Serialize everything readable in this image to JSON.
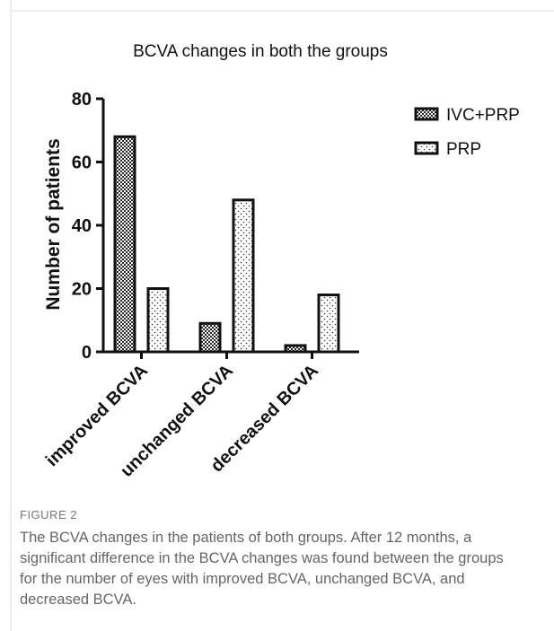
{
  "chart_data": {
    "type": "bar",
    "title": "BCVA changes in both the groups",
    "ylabel": "Number of  patients",
    "categories": [
      "improved BCVA",
      "unchanged BCVA",
      "decreased BCVA"
    ],
    "series": [
      {
        "name": "IVC+PRP",
        "values": [
          68,
          9,
          2
        ]
      },
      {
        "name": "PRP",
        "values": [
          20,
          48,
          18
        ]
      }
    ],
    "ylim": [
      0,
      80
    ],
    "yticks": [
      0,
      20,
      40,
      60,
      80
    ]
  },
  "caption": {
    "label": "FIGURE 2",
    "text": "The BCVA changes in the patients of both groups. After 12 months, a significant difference in the BCVA changes was found between the groups for the number of eyes with improved BCVA, unchanged BCVA, and decreased BCVA."
  }
}
